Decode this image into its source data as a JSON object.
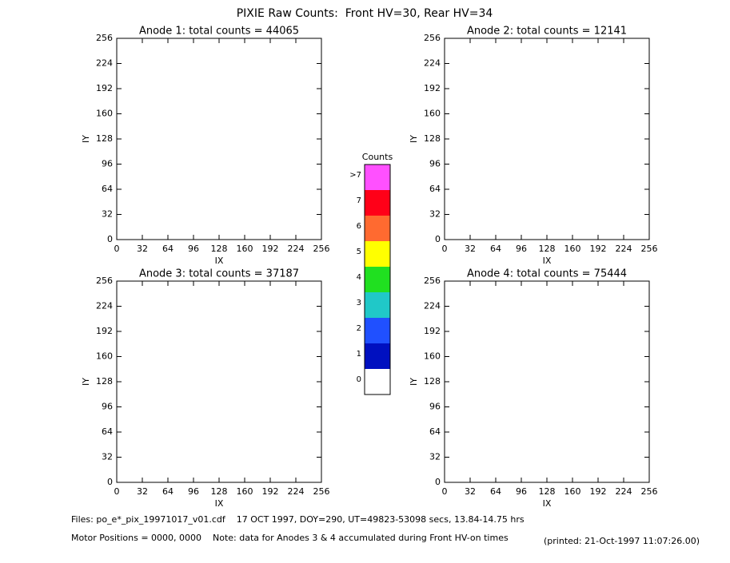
{
  "title": "PIXIE Raw Counts:  Front HV=30, Rear HV=34",
  "chart_data": [
    {
      "type": "heatmap",
      "title": "Anode 1: total counts = 44065",
      "xlabel": "IX",
      "ylabel": "IY",
      "xlim": [
        0,
        256
      ],
      "ylim": [
        0,
        256
      ],
      "xticks": [
        0,
        32,
        64,
        96,
        128,
        160,
        192,
        224,
        256
      ],
      "yticks": [
        0,
        32,
        64,
        96,
        128,
        160,
        192,
        224,
        256
      ]
    },
    {
      "type": "heatmap",
      "title": "Anode 2: total counts = 12141",
      "xlabel": "IX",
      "ylabel": "IY",
      "xlim": [
        0,
        256
      ],
      "ylim": [
        0,
        256
      ],
      "xticks": [
        0,
        32,
        64,
        96,
        128,
        160,
        192,
        224,
        256
      ],
      "yticks": [
        0,
        32,
        64,
        96,
        128,
        160,
        192,
        224,
        256
      ]
    },
    {
      "type": "heatmap",
      "title": "Anode 3: total counts = 37187",
      "xlabel": "IX",
      "ylabel": "IY",
      "xlim": [
        0,
        256
      ],
      "ylim": [
        0,
        256
      ],
      "xticks": [
        0,
        32,
        64,
        96,
        128,
        160,
        192,
        224,
        256
      ],
      "yticks": [
        0,
        32,
        64,
        96,
        128,
        160,
        192,
        224,
        256
      ]
    },
    {
      "type": "heatmap",
      "title": "Anode 4: total counts = 75444",
      "xlabel": "IX",
      "ylabel": "IY",
      "xlim": [
        0,
        256
      ],
      "ylim": [
        0,
        256
      ],
      "xticks": [
        0,
        32,
        64,
        96,
        128,
        160,
        192,
        224,
        256
      ],
      "yticks": [
        0,
        32,
        64,
        96,
        128,
        160,
        192,
        224,
        256
      ]
    }
  ],
  "colorbar": {
    "title": "Counts",
    "ticks": [
      0,
      1,
      2,
      3,
      4,
      5,
      6,
      7,
      {
        "value": 8,
        "label": ">7"
      }
    ],
    "colors": [
      "#ffffff",
      "#0010c0",
      "#2050ff",
      "#20c8c8",
      "#20e020",
      "#ffff00",
      "#ff6a30",
      "#ff0018",
      "#ff50ff"
    ]
  },
  "footer": {
    "files": "Files: po_e*_pix_19971017_v01.cdf    17 OCT 1997, DOY=290, UT=49823-53098 secs, 13.84-14.75 hrs",
    "motor": "Motor Positions = 0000, 0000    Note: data for Anodes 3 & 4 accumulated during Front HV-on times",
    "printed": "(printed: 21-Oct-1997 11:07:26.00)"
  }
}
